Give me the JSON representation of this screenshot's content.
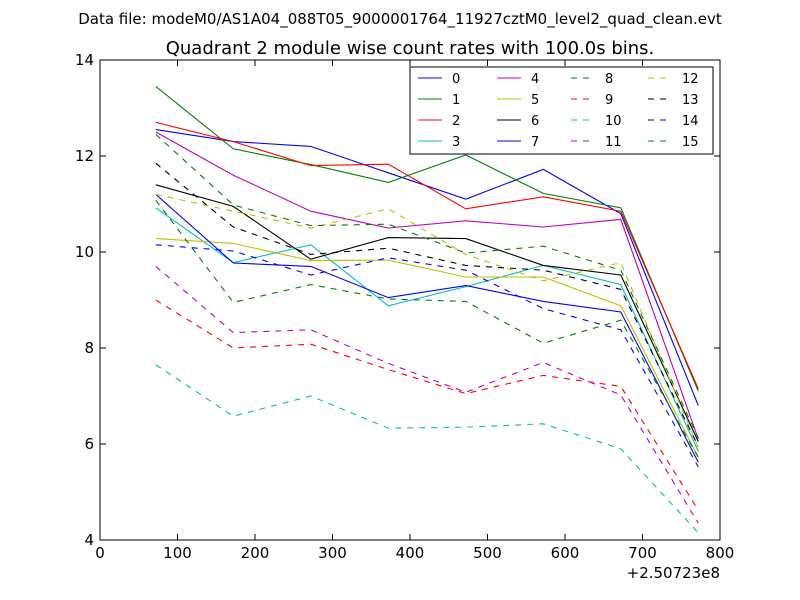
{
  "chart_data": {
    "type": "line",
    "suptitle": "Data file: modeM0/AS1A04_088T05_9000001764_11927cztM0_level2_quad_clean.evt",
    "title": "Quadrant 2 module wise count rates with 100.0s bins.",
    "xlabel": "",
    "ylabel": "",
    "x_offset_label": "+2.50723e8",
    "xlim": [
      0,
      800
    ],
    "ylim": [
      4,
      14
    ],
    "xticks": [
      0,
      100,
      200,
      300,
      400,
      500,
      600,
      700,
      800
    ],
    "yticks": [
      4,
      6,
      8,
      10,
      12,
      14
    ],
    "legend_position": "top-right",
    "x": [
      72,
      172,
      272,
      372,
      472,
      572,
      672,
      772
    ],
    "series": [
      {
        "name": "0",
        "color": "#0000ff",
        "dash": "solid",
        "values": [
          12.55,
          12.3,
          12.2,
          11.65,
          11.1,
          11.72,
          10.8,
          6.8
        ]
      },
      {
        "name": "1",
        "color": "#008000",
        "dash": "solid",
        "values": [
          13.45,
          12.15,
          11.82,
          11.45,
          12.02,
          11.22,
          10.92,
          7.1
        ]
      },
      {
        "name": "2",
        "color": "#ff0000",
        "dash": "solid",
        "values": [
          12.7,
          12.3,
          11.8,
          11.83,
          10.9,
          11.15,
          10.85,
          7.15
        ]
      },
      {
        "name": "3",
        "color": "#00bfbf",
        "dash": "solid",
        "values": [
          10.92,
          9.78,
          10.15,
          8.88,
          9.28,
          9.72,
          9.32,
          5.85
        ]
      },
      {
        "name": "4",
        "color": "#bf00bf",
        "dash": "solid",
        "values": [
          12.5,
          11.6,
          10.85,
          10.5,
          10.65,
          10.52,
          10.68,
          6.1
        ]
      },
      {
        "name": "5",
        "color": "#bfbf00",
        "dash": "solid",
        "values": [
          10.28,
          10.18,
          9.82,
          9.83,
          9.48,
          9.48,
          8.88,
          5.72
        ]
      },
      {
        "name": "6",
        "color": "#000000",
        "dash": "solid",
        "values": [
          11.4,
          10.95,
          9.85,
          10.3,
          10.28,
          9.72,
          9.52,
          6.05
        ]
      },
      {
        "name": "7",
        "color": "#0000ff",
        "dash": "solid",
        "values": [
          11.2,
          9.77,
          9.7,
          9.05,
          9.3,
          8.97,
          8.75,
          5.62
        ]
      },
      {
        "name": "8",
        "color": "#008000",
        "dash": "dashed",
        "values": [
          11.08,
          8.95,
          9.32,
          9.02,
          8.97,
          8.1,
          8.58,
          5.72
        ]
      },
      {
        "name": "9",
        "color": "#ff0000",
        "dash": "dashed",
        "values": [
          9.0,
          8.0,
          8.08,
          7.55,
          7.05,
          7.43,
          7.2,
          4.62
        ]
      },
      {
        "name": "10",
        "color": "#00bfbf",
        "dash": "dashed",
        "values": [
          7.65,
          6.58,
          7.0,
          6.33,
          6.35,
          6.42,
          5.9,
          4.15
        ]
      },
      {
        "name": "11",
        "color": "#bf00bf",
        "dash": "dashed",
        "values": [
          9.7,
          8.32,
          8.38,
          7.68,
          7.08,
          7.7,
          7.02,
          4.35
        ]
      },
      {
        "name": "12",
        "color": "#bfbf00",
        "dash": "dashed",
        "values": [
          11.2,
          10.85,
          10.5,
          10.9,
          9.95,
          9.4,
          9.78,
          5.92
        ]
      },
      {
        "name": "13",
        "color": "#000000",
        "dash": "dashed",
        "values": [
          11.85,
          10.52,
          9.95,
          10.08,
          9.72,
          9.62,
          9.22,
          5.95
        ]
      },
      {
        "name": "14",
        "color": "#0000ff",
        "dash": "dashed",
        "values": [
          10.15,
          10.02,
          9.52,
          9.88,
          9.62,
          8.82,
          8.38,
          5.52
        ]
      },
      {
        "name": "15",
        "color": "#008000",
        "dash": "dashed",
        "values": [
          12.45,
          10.98,
          10.55,
          10.58,
          9.98,
          10.12,
          9.62,
          6.12
        ]
      }
    ]
  }
}
